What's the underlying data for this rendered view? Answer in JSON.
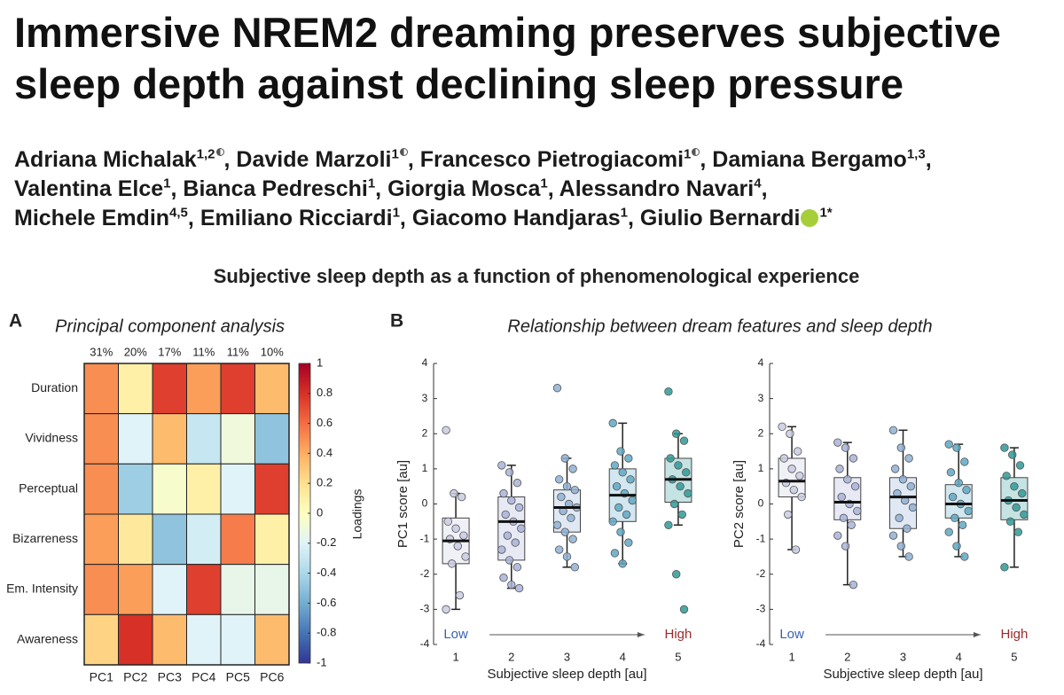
{
  "header": {
    "title_lines": [
      "Immersive NREM2 dreaming preserves subjective",
      "sleep depth against declining sleep pressure"
    ],
    "author_lines": [
      [
        {
          "name": "Adriana Michalak",
          "sup": "1,2",
          "equal": true,
          "after": ","
        },
        {
          "name": "Davide Marzoli",
          "sup": "1",
          "equal": true,
          "after": ","
        },
        {
          "name": "Francesco Pietrogiacomi",
          "sup": "1",
          "equal": true,
          "after": ","
        },
        {
          "name": "Damiana Bergamo",
          "sup": "1,3",
          "after": ","
        }
      ],
      [
        {
          "name": "Valentina Elce",
          "sup": "1",
          "after": ","
        },
        {
          "name": "Bianca Pedreschi",
          "sup": "1",
          "after": ","
        },
        {
          "name": "Giorgia Mosca",
          "sup": "1",
          "after": ","
        },
        {
          "name": "Alessandro Navari",
          "sup": "4",
          "after": ","
        }
      ],
      [
        {
          "name": "Michele Emdin",
          "sup": "4,5",
          "after": ","
        },
        {
          "name": "Emiliano Ricciardi",
          "sup": "1",
          "after": ","
        },
        {
          "name": "Giacomo Handjaras",
          "sup": "1",
          "after": ","
        },
        {
          "name": "Giulio Bernardi",
          "sup": "1*",
          "orcid": true
        }
      ]
    ]
  },
  "figure_title": "Subjective sleep depth as a function of phenomenological experience",
  "panels": [
    {
      "letter": "A",
      "title": "Principal component analysis"
    },
    {
      "letter": "B",
      "title": "Relationship between dream features and sleep depth"
    }
  ],
  "chart_data": [
    {
      "type": "heatmap",
      "rows": [
        "Duration",
        "Vividness",
        "Perceptual",
        "Bizarreness",
        "Em. Intensity",
        "Awareness"
      ],
      "columns": [
        "PC1",
        "PC2",
        "PC3",
        "PC4",
        "PC5",
        "PC6"
      ],
      "column_annotations": [
        "31%",
        "20%",
        "17%",
        "11%",
        "11%",
        "10%"
      ],
      "values": [
        [
          0.5,
          0.1,
          0.75,
          0.45,
          0.75,
          0.35
        ],
        [
          0.5,
          -0.2,
          0.35,
          -0.3,
          -0.1,
          -0.5
        ],
        [
          0.5,
          -0.45,
          -0.05,
          0.1,
          -0.2,
          0.75
        ],
        [
          0.45,
          0.15,
          -0.5,
          -0.25,
          0.55,
          0.1
        ],
        [
          0.5,
          0.45,
          -0.2,
          0.75,
          -0.15,
          -0.15
        ],
        [
          0.25,
          0.8,
          0.35,
          -0.2,
          -0.2,
          0.35
        ]
      ],
      "clim": [
        -1,
        1
      ],
      "cticks": [
        1,
        0.8,
        0.6,
        0.4,
        0.2,
        0,
        -0.2,
        -0.4,
        -0.6,
        -0.8,
        -1
      ],
      "colorbar_label": "Loadings",
      "colormap": [
        "#313695",
        "#4575b4",
        "#74add1",
        "#abd9e9",
        "#e0f3f8",
        "#ffffbf",
        "#fee090",
        "#fdae61",
        "#f46d43",
        "#d73027",
        "#a50026"
      ]
    },
    {
      "type": "box",
      "ylabel": "PC1 score [au]",
      "xlabel": "Subjective sleep depth [au]",
      "x": [
        1,
        2,
        3,
        4,
        5
      ],
      "xlim": [
        0.6,
        5.4
      ],
      "xticks": [
        1,
        2,
        3,
        4,
        5
      ],
      "ylim": [
        -4,
        4
      ],
      "yticks": [
        -4,
        -3,
        -2,
        -1,
        0,
        1,
        2,
        3,
        4
      ],
      "colors": [
        "#c9cbe3",
        "#a9b3d8",
        "#8fb0d3",
        "#5fa8c4",
        "#2f9a96"
      ],
      "annotations": [
        {
          "text": "Low",
          "color": "#3563b0"
        },
        {
          "text": "High",
          "color": "#9b2c2c"
        }
      ],
      "boxes": [
        {
          "whisker_low": -3,
          "q1": -1.7,
          "median": -1.05,
          "q3": -0.4,
          "whisker_high": 0.3,
          "points": [
            2.1,
            0.3,
            0.2,
            -0.5,
            -0.7,
            -0.9,
            -1.0,
            -1.2,
            -1.5,
            -1.7,
            -2.6,
            -3.0
          ]
        },
        {
          "whisker_low": -2.4,
          "q1": -1.6,
          "median": -0.5,
          "q3": 0.2,
          "whisker_high": 1.1,
          "points": [
            1.1,
            0.9,
            0.6,
            0.3,
            0.1,
            -0.1,
            -0.3,
            -0.5,
            -0.7,
            -0.9,
            -1.1,
            -1.3,
            -1.6,
            -1.8,
            -2.1,
            -2.3,
            -2.4
          ]
        },
        {
          "whisker_low": -1.8,
          "q1": -0.8,
          "median": -0.1,
          "q3": 0.4,
          "whisker_high": 1.3,
          "points": [
            3.3,
            1.3,
            1.0,
            0.7,
            0.5,
            0.4,
            0.2,
            0.0,
            -0.1,
            -0.2,
            -0.4,
            -0.6,
            -0.8,
            -1.0,
            -1.3,
            -1.5,
            -1.8
          ]
        },
        {
          "whisker_low": -1.7,
          "q1": -0.5,
          "median": 0.25,
          "q3": 1.0,
          "whisker_high": 2.3,
          "points": [
            2.3,
            1.5,
            1.3,
            1.1,
            0.9,
            0.7,
            0.5,
            0.3,
            0.1,
            -0.1,
            -0.3,
            -0.5,
            -0.8,
            -1.1,
            -1.4,
            -1.7
          ]
        },
        {
          "whisker_low": -0.6,
          "q1": 0.05,
          "median": 0.7,
          "q3": 1.3,
          "whisker_high": 2.0,
          "points": [
            3.2,
            2.0,
            1.8,
            1.3,
            1.1,
            0.9,
            0.7,
            0.5,
            0.3,
            0.0,
            -0.3,
            -0.6,
            -2.0,
            -3.0
          ]
        }
      ]
    },
    {
      "type": "box",
      "ylabel": "PC2 score [au]",
      "xlabel": "Subjective sleep depth [au]",
      "x": [
        1,
        2,
        3,
        4,
        5
      ],
      "xlim": [
        0.6,
        5.4
      ],
      "xticks": [
        1,
        2,
        3,
        4,
        5
      ],
      "ylim": [
        -4,
        4
      ],
      "yticks": [
        -4,
        -3,
        -2,
        -1,
        0,
        1,
        2,
        3,
        4
      ],
      "colors": [
        "#c9cbe3",
        "#a9b3d8",
        "#8fb0d3",
        "#5fa8c4",
        "#2f9a96"
      ],
      "annotations": [
        {
          "text": "Low",
          "color": "#3563b0"
        },
        {
          "text": "High",
          "color": "#9b2c2c"
        }
      ],
      "boxes": [
        {
          "whisker_low": -1.3,
          "q1": 0.2,
          "median": 0.65,
          "q3": 1.3,
          "whisker_high": 2.2,
          "points": [
            2.2,
            2.0,
            1.5,
            1.3,
            1.0,
            0.8,
            0.6,
            0.4,
            0.2,
            -0.3,
            -1.3
          ]
        },
        {
          "whisker_low": -2.3,
          "q1": -0.45,
          "median": 0.05,
          "q3": 0.75,
          "whisker_high": 1.75,
          "points": [
            1.75,
            1.6,
            1.3,
            1.0,
            0.7,
            0.5,
            0.2,
            0.0,
            -0.2,
            -0.4,
            -0.6,
            -0.9,
            -1.2,
            -2.3
          ]
        },
        {
          "whisker_low": -1.5,
          "q1": -0.7,
          "median": 0.2,
          "q3": 0.75,
          "whisker_high": 2.1,
          "points": [
            2.1,
            1.6,
            1.3,
            1.0,
            0.7,
            0.5,
            0.3,
            0.1,
            -0.1,
            -0.4,
            -0.7,
            -0.9,
            -1.2,
            -1.5
          ]
        },
        {
          "whisker_low": -1.5,
          "q1": -0.4,
          "median": 0.0,
          "q3": 0.55,
          "whisker_high": 1.7,
          "points": [
            1.7,
            1.6,
            1.2,
            0.9,
            0.6,
            0.4,
            0.2,
            0.0,
            -0.2,
            -0.4,
            -0.6,
            -0.8,
            -1.2,
            -1.5
          ]
        },
        {
          "whisker_low": -1.8,
          "q1": -0.45,
          "median": 0.1,
          "q3": 0.75,
          "whisker_high": 1.6,
          "points": [
            1.6,
            1.4,
            1.1,
            0.8,
            0.5,
            0.3,
            0.1,
            -0.1,
            -0.3,
            -0.5,
            -0.8,
            -1.8
          ]
        }
      ]
    }
  ]
}
